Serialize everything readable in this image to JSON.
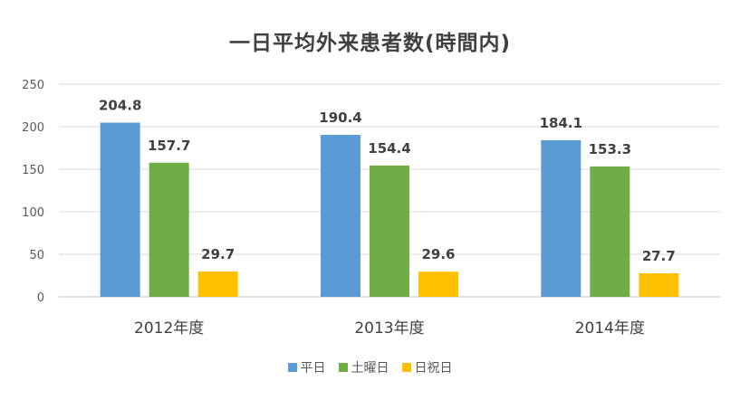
{
  "chart_data": {
    "type": "bar",
    "title": "一日平均外来患者数(時間内)",
    "categories": [
      "2012年度",
      "2013年度",
      "2014年度"
    ],
    "series": [
      {
        "name": "平日",
        "values": [
          204.8,
          190.4,
          184.1
        ],
        "color": "#5B9BD5"
      },
      {
        "name": "土曜日",
        "values": [
          157.7,
          154.4,
          153.3
        ],
        "color": "#70AD47"
      },
      {
        "name": "日祝日",
        "values": [
          29.7,
          29.6,
          27.7
        ],
        "color": "#FFC000"
      }
    ],
    "y_ticks": [
      0,
      50,
      100,
      150,
      200,
      250
    ],
    "ylim": [
      0,
      250
    ],
    "grid": true,
    "legend_position": "bottom"
  }
}
